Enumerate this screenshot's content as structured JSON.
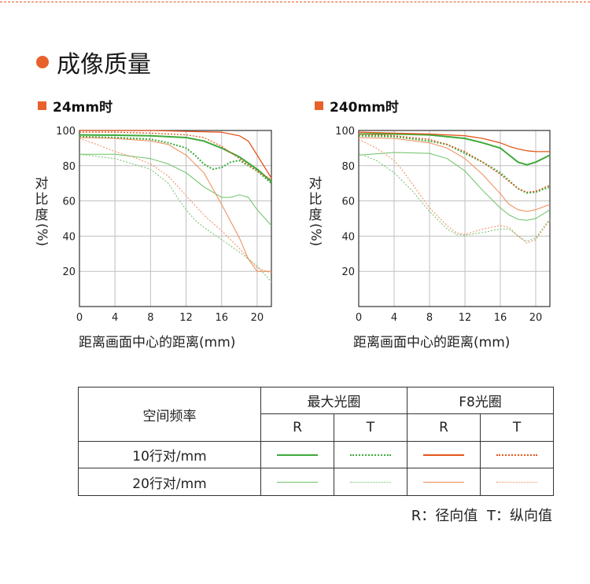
{
  "section_title": "成像质量",
  "axis_text": {
    "ylabel": "对比度(%)",
    "ylabel_chars": [
      "对",
      "比",
      "度",
      "(%)"
    ],
    "xlabel": "距离画面中心的距离(mm)"
  },
  "colors": {
    "accent": "#e8612c",
    "green": "#3daa3a",
    "green_light": "#6cc266",
    "orange": "#e4561b",
    "orange_light": "#ef8a57"
  },
  "legend": {
    "corner_label": "空间频率",
    "group_headers": [
      "最大光圈",
      "F8光圈"
    ],
    "sub_headers": [
      "R",
      "T",
      "R",
      "T"
    ],
    "rows": [
      "10行对/mm",
      "20行对/mm"
    ]
  },
  "footnote": {
    "r_key": "R",
    "r_desc": "径向值",
    "t_key": "T",
    "t_desc": "纵向值"
  },
  "chart_data": [
    {
      "type": "line",
      "title": "24mm时",
      "xlabel": "距离画面中心的距离(mm)",
      "ylabel": "对比度(%)",
      "xlim": [
        0,
        21.6
      ],
      "ylim": [
        0,
        100
      ],
      "xticks": [
        0,
        4,
        8,
        12,
        16,
        20
      ],
      "yticks": [
        20,
        40,
        60,
        80,
        100
      ],
      "grid": true,
      "series": [
        {
          "color": "green",
          "width": 2,
          "dash": "",
          "x": [
            0,
            4,
            8,
            12,
            14,
            16,
            18,
            20,
            21.6
          ],
          "y": [
            97.5,
            97.3,
            97,
            96,
            94,
            90,
            85,
            78,
            71
          ]
        },
        {
          "color": "green",
          "width": 2,
          "dash": "2,2",
          "x": [
            0,
            4,
            8,
            10,
            12,
            13,
            14,
            15,
            16,
            17,
            18,
            20,
            21.6
          ],
          "y": [
            96.5,
            96,
            95,
            93,
            90,
            86,
            81,
            78,
            79,
            82,
            83,
            77,
            70
          ]
        },
        {
          "color": "green_light",
          "width": 1,
          "dash": "",
          "x": [
            0,
            4,
            8,
            10,
            12,
            14,
            16,
            17,
            18,
            19,
            20,
            21.6
          ],
          "y": [
            86.5,
            86.5,
            84,
            81,
            76,
            68,
            62,
            62,
            63.5,
            62,
            55,
            46
          ]
        },
        {
          "color": "green_light",
          "width": 1,
          "dash": "2,2",
          "x": [
            0,
            4,
            8,
            10,
            11,
            12,
            13,
            14,
            16,
            18,
            20,
            21.6
          ],
          "y": [
            86.5,
            84,
            78,
            70,
            62,
            55,
            49,
            45,
            38,
            31,
            23,
            14
          ]
        },
        {
          "color": "orange",
          "width": 1.3,
          "dash": "",
          "x": [
            0,
            4,
            8,
            12,
            16,
            18,
            19,
            20,
            21.6
          ],
          "y": [
            100,
            100,
            100,
            99.5,
            99,
            97,
            94,
            86,
            73
          ]
        },
        {
          "color": "orange",
          "width": 1.3,
          "dash": "2,2",
          "x": [
            0,
            4,
            8,
            12,
            14,
            16,
            18,
            20,
            21.6
          ],
          "y": [
            99,
            99,
            98.5,
            97.5,
            96,
            91,
            84,
            77,
            72
          ]
        },
        {
          "color": "orange_light",
          "width": 1,
          "dash": "",
          "x": [
            0,
            4,
            8,
            10,
            12,
            14,
            16,
            18,
            19,
            20,
            21.6
          ],
          "y": [
            96,
            95.5,
            94,
            92,
            86,
            76,
            58,
            39,
            27,
            20,
            20
          ]
        },
        {
          "color": "orange_light",
          "width": 1,
          "dash": "2,2",
          "x": [
            0,
            2,
            4,
            6,
            8,
            10,
            12,
            14,
            16,
            18,
            20,
            21.6
          ],
          "y": [
            95.5,
            92,
            88,
            85,
            81,
            74,
            63,
            52,
            43,
            33,
            22,
            19
          ]
        }
      ]
    },
    {
      "type": "line",
      "title": "240mm时",
      "xlabel": "距离画面中心的距离(mm)",
      "ylabel": "对比度(%)",
      "xlim": [
        0,
        21.6
      ],
      "ylim": [
        0,
        100
      ],
      "xticks": [
        0,
        4,
        8,
        12,
        16,
        20
      ],
      "yticks": [
        20,
        40,
        60,
        80,
        100
      ],
      "grid": true,
      "series": [
        {
          "color": "green",
          "width": 2,
          "dash": "",
          "x": [
            0,
            4,
            8,
            12,
            14,
            16,
            17,
            18,
            19,
            20,
            21.6
          ],
          "y": [
            98,
            98,
            97.5,
            95.5,
            93,
            90,
            86,
            82,
            80.5,
            82,
            86
          ]
        },
        {
          "color": "green",
          "width": 2,
          "dash": "2,2",
          "x": [
            0,
            4,
            8,
            10,
            12,
            14,
            16,
            18,
            19,
            20,
            21.6
          ],
          "y": [
            97,
            96.5,
            94,
            92,
            87,
            82,
            76,
            67,
            64.5,
            65,
            68
          ]
        },
        {
          "color": "green_light",
          "width": 1,
          "dash": "",
          "x": [
            0,
            4,
            8,
            10,
            12,
            14,
            16,
            17,
            18,
            19,
            20,
            21.6
          ],
          "y": [
            86,
            87.5,
            87,
            84,
            77,
            66,
            56,
            52,
            49.5,
            49,
            50,
            55
          ]
        },
        {
          "color": "green_light",
          "width": 1,
          "dash": "2,2",
          "x": [
            0,
            2,
            4,
            6,
            8,
            10,
            11,
            12,
            14,
            16,
            17,
            18,
            19,
            20,
            21.6
          ],
          "y": [
            87,
            83,
            76,
            66,
            54,
            44,
            41,
            40.5,
            42,
            44,
            44,
            40,
            37,
            39,
            50
          ]
        },
        {
          "color": "orange",
          "width": 1.3,
          "dash": "",
          "x": [
            0,
            4,
            8,
            12,
            14,
            16,
            17,
            18,
            19,
            20,
            21.6
          ],
          "y": [
            99,
            98.5,
            98,
            97,
            95.5,
            93,
            91,
            89.5,
            88.5,
            88,
            88
          ]
        },
        {
          "color": "orange",
          "width": 1.3,
          "dash": "2,2",
          "x": [
            0,
            4,
            8,
            10,
            12,
            14,
            16,
            18,
            19,
            20,
            21.6
          ],
          "y": [
            98,
            97,
            95,
            92,
            88,
            82,
            75,
            67,
            65,
            65.5,
            69
          ]
        },
        {
          "color": "orange_light",
          "width": 1,
          "dash": "",
          "x": [
            0,
            4,
            8,
            10,
            12,
            14,
            16,
            17,
            18,
            19,
            20,
            21.6
          ],
          "y": [
            96,
            95.5,
            93,
            90,
            84,
            75,
            64,
            58,
            55,
            54,
            55,
            58
          ]
        },
        {
          "color": "orange_light",
          "width": 1,
          "dash": "2,2",
          "x": [
            0,
            2,
            4,
            5,
            6,
            8,
            10,
            11,
            12,
            14,
            16,
            17,
            18,
            19,
            20,
            21.6
          ],
          "y": [
            95,
            90,
            83,
            77,
            70,
            56,
            46,
            42,
            41,
            44,
            46,
            45,
            40,
            36,
            38,
            49
          ]
        }
      ]
    }
  ]
}
